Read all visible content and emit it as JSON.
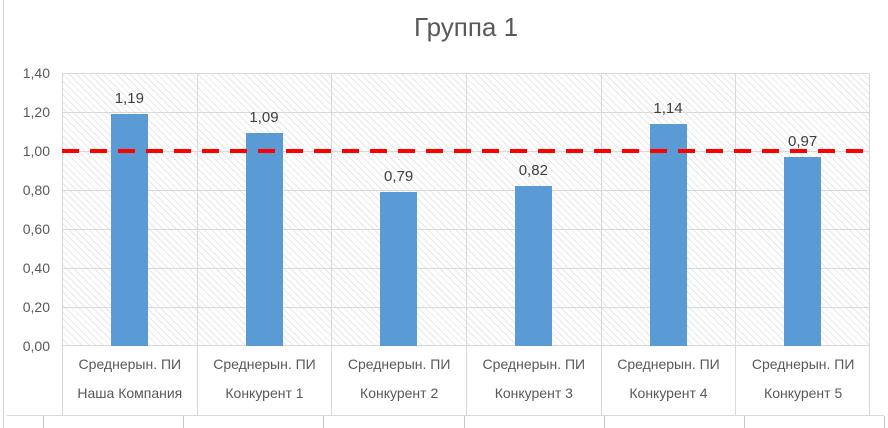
{
  "chart_data": {
    "type": "bar",
    "title": "Группа 1",
    "categories": [
      "Наша Компания",
      "Конкурент 1",
      "Конкурент 2",
      "Конкурент 3",
      "Конкурент 4",
      "Конкурент 5"
    ],
    "series": [
      {
        "name": "Среднерын. ПИ",
        "values": [
          1.19,
          1.09,
          0.79,
          0.82,
          1.14,
          0.97
        ]
      }
    ],
    "value_labels": [
      "1,19",
      "1,09",
      "0,79",
      "0,82",
      "1,14",
      "0,97"
    ],
    "y_tick_labels": [
      "1,40",
      "1,20",
      "1,00",
      "0,80",
      "0,60",
      "0,40",
      "0,20",
      "0,00"
    ],
    "ylim": [
      0,
      1.4
    ],
    "y_tick_step": 0.2,
    "grid": true,
    "legend": "none",
    "reference_line": {
      "value": 1.0,
      "style": "dashed",
      "color": "#FF0000"
    },
    "colors": {
      "bar": "#5B9BD5",
      "grid": "#D9D9D9",
      "title": "#595959",
      "tick_label": "#595959",
      "value_label": "#3F3F3F",
      "reference": "#FF0000",
      "plot_hatch": "#E7E7E7"
    }
  }
}
